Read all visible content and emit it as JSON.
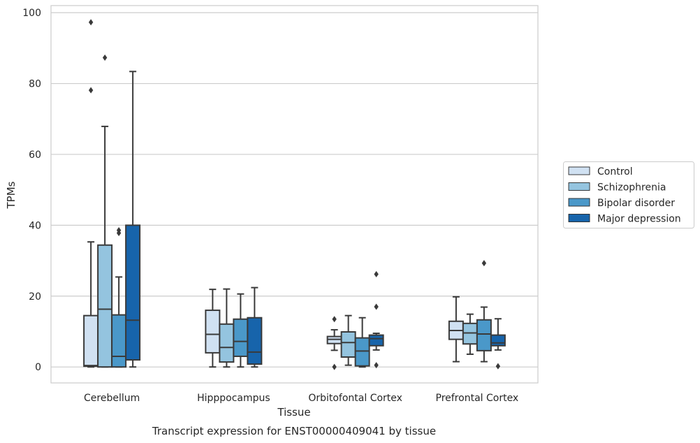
{
  "chart_data": {
    "type": "box",
    "title": "",
    "caption": "Transcript expression for ENST00000409041 by tissue",
    "xlabel": "Tissue",
    "ylabel": "TPMs",
    "ylim": [
      -4.5,
      102
    ],
    "yticks": [
      0,
      20,
      40,
      60,
      80,
      100
    ],
    "grid": "horizontal",
    "legend_position": "right",
    "categories": [
      "Cerebellum",
      "Hipppocampus",
      "Orbitofontal Cortex",
      "Prefrontal Cortex"
    ],
    "series": [
      {
        "name": "Control",
        "color": "#d0e1f2",
        "boxes": [
          {
            "whislo": 0,
            "q1": 0.2,
            "med": 0.4,
            "q3": 14.5,
            "whishi": 35.3,
            "fliers": [
              97.3,
              78.1
            ]
          },
          {
            "whislo": 0,
            "q1": 4.0,
            "med": 9.2,
            "q3": 16.0,
            "whishi": 21.9,
            "fliers": []
          },
          {
            "whislo": 4.7,
            "q1": 6.6,
            "med": 7.8,
            "q3": 8.6,
            "whishi": 10.5,
            "fliers": [
              13.5,
              0
            ]
          },
          {
            "whislo": 1.5,
            "q1": 7.8,
            "med": 10.3,
            "q3": 12.9,
            "whishi": 19.8,
            "fliers": []
          }
        ]
      },
      {
        "name": "Schizophrenia",
        "color": "#94c4df",
        "boxes": [
          {
            "whislo": 0,
            "q1": 0,
            "med": 16.3,
            "q3": 34.4,
            "whishi": 67.9,
            "fliers": [
              87.3
            ]
          },
          {
            "whislo": 0,
            "q1": 1.4,
            "med": 5.5,
            "q3": 12.1,
            "whishi": 22.0,
            "fliers": []
          },
          {
            "whislo": 0.5,
            "q1": 2.8,
            "med": 6.9,
            "q3": 9.9,
            "whishi": 14.5,
            "fliers": []
          },
          {
            "whislo": 3.6,
            "q1": 6.5,
            "med": 9.6,
            "q3": 12.3,
            "whishi": 14.9,
            "fliers": []
          }
        ]
      },
      {
        "name": "Bipolar disorder",
        "color": "#4a98c9",
        "boxes": [
          {
            "whislo": 0,
            "q1": 0,
            "med": 3.0,
            "q3": 14.7,
            "whishi": 25.4,
            "fliers": [
              38.6,
              37.8
            ]
          },
          {
            "whislo": 0,
            "q1": 3.0,
            "med": 7.2,
            "q3": 13.5,
            "whishi": 20.6,
            "fliers": []
          },
          {
            "whislo": 0,
            "q1": 0.3,
            "med": 4.5,
            "q3": 8.2,
            "whishi": 13.9,
            "fliers": []
          },
          {
            "whislo": 1.5,
            "q1": 4.6,
            "med": 9.3,
            "q3": 13.3,
            "whishi": 16.9,
            "fliers": [
              29.3
            ]
          }
        ]
      },
      {
        "name": "Major depression",
        "color": "#1764ab",
        "boxes": [
          {
            "whislo": 0,
            "q1": 2.0,
            "med": 13.2,
            "q3": 40.0,
            "whishi": 83.4,
            "fliers": []
          },
          {
            "whislo": 0,
            "q1": 0.8,
            "med": 4.2,
            "q3": 13.9,
            "whishi": 22.4,
            "fliers": []
          },
          {
            "whislo": 4.8,
            "q1": 6.0,
            "med": 8.0,
            "q3": 9.0,
            "whishi": 9.5,
            "fliers": [
              26.2,
              17.0,
              0.5
            ]
          },
          {
            "whislo": 4.8,
            "q1": 6.0,
            "med": 6.8,
            "q3": 9.0,
            "whishi": 13.6,
            "fliers": [
              0.2
            ]
          }
        ]
      }
    ]
  }
}
